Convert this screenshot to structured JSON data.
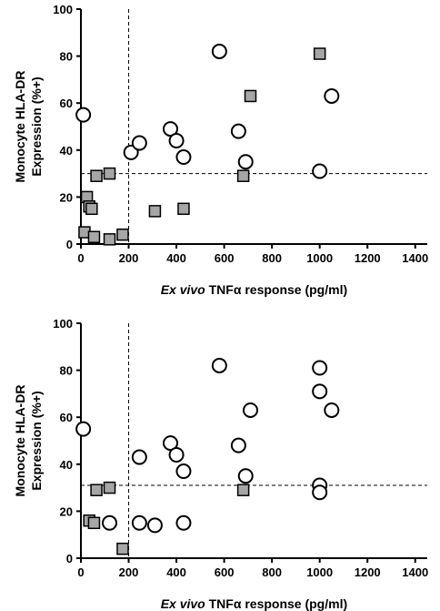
{
  "chart_data": [
    {
      "type": "scatter",
      "title": "",
      "xlabel_italic": "Ex vivo",
      "xlabel_rest": " TNFα response (pg/ml)",
      "ylabel_line1": "Monocyte HLA-DR",
      "ylabel_line2": "Expression (%+)",
      "xlim": [
        0,
        1500
      ],
      "ylim": [
        0,
        100
      ],
      "x_ticks": [
        0,
        200,
        400,
        600,
        800,
        1000,
        1200,
        1400
      ],
      "y_ticks": [
        0,
        20,
        40,
        60,
        80,
        100
      ],
      "grid": false,
      "reference_lines": {
        "x": 200,
        "y": 30
      },
      "colors": {
        "square_fill": "#a6a6a6",
        "circle_fill": "#ffffff",
        "stroke": "#000000"
      },
      "series": [
        {
          "marker": "circle",
          "points": [
            [
              10,
              55
            ],
            [
              210,
              39
            ],
            [
              245,
              43
            ],
            [
              375,
              49
            ],
            [
              400,
              44
            ],
            [
              430,
              37
            ],
            [
              580,
              82
            ],
            [
              660,
              48
            ],
            [
              690,
              35
            ],
            [
              1000,
              31
            ],
            [
              1050,
              63
            ]
          ]
        },
        {
          "marker": "square",
          "points": [
            [
              15,
              5
            ],
            [
              25,
              20
            ],
            [
              35,
              16
            ],
            [
              45,
              15
            ],
            [
              55,
              3
            ],
            [
              65,
              29
            ],
            [
              120,
              30
            ],
            [
              120,
              2
            ],
            [
              175,
              4
            ],
            [
              310,
              14
            ],
            [
              430,
              15
            ],
            [
              680,
              29
            ],
            [
              710,
              63
            ],
            [
              1000,
              81
            ]
          ]
        }
      ]
    },
    {
      "type": "scatter",
      "title": "",
      "xlabel_italic": "Ex vivo",
      "xlabel_rest": " TNFα response (pg/ml)",
      "ylabel_line1": "Monocyte HLA-DR",
      "ylabel_line2": "Expression (%+)",
      "xlim": [
        0,
        1500
      ],
      "ylim": [
        0,
        100
      ],
      "x_ticks": [
        0,
        200,
        400,
        600,
        800,
        1000,
        1200,
        1400
      ],
      "y_ticks": [
        0,
        20,
        40,
        60,
        80,
        100
      ],
      "grid": false,
      "reference_lines": {
        "x": 200,
        "y": 31
      },
      "colors": {
        "square_fill": "#a6a6a6",
        "circle_fill": "#ffffff",
        "stroke": "#000000"
      },
      "series": [
        {
          "marker": "circle",
          "points": [
            [
              10,
              55
            ],
            [
              120,
              15
            ],
            [
              245,
              43
            ],
            [
              245,
              15
            ],
            [
              310,
              14
            ],
            [
              375,
              49
            ],
            [
              400,
              44
            ],
            [
              430,
              37
            ],
            [
              430,
              15
            ],
            [
              580,
              82
            ],
            [
              660,
              48
            ],
            [
              690,
              35
            ],
            [
              710,
              63
            ],
            [
              1000,
              81
            ],
            [
              1000,
              71
            ],
            [
              1000,
              31
            ],
            [
              1000,
              28
            ],
            [
              1050,
              63
            ]
          ]
        },
        {
          "marker": "square",
          "points": [
            [
              35,
              16
            ],
            [
              55,
              15
            ],
            [
              65,
              29
            ],
            [
              120,
              30
            ],
            [
              175,
              4
            ],
            [
              680,
              29
            ]
          ]
        }
      ]
    }
  ]
}
